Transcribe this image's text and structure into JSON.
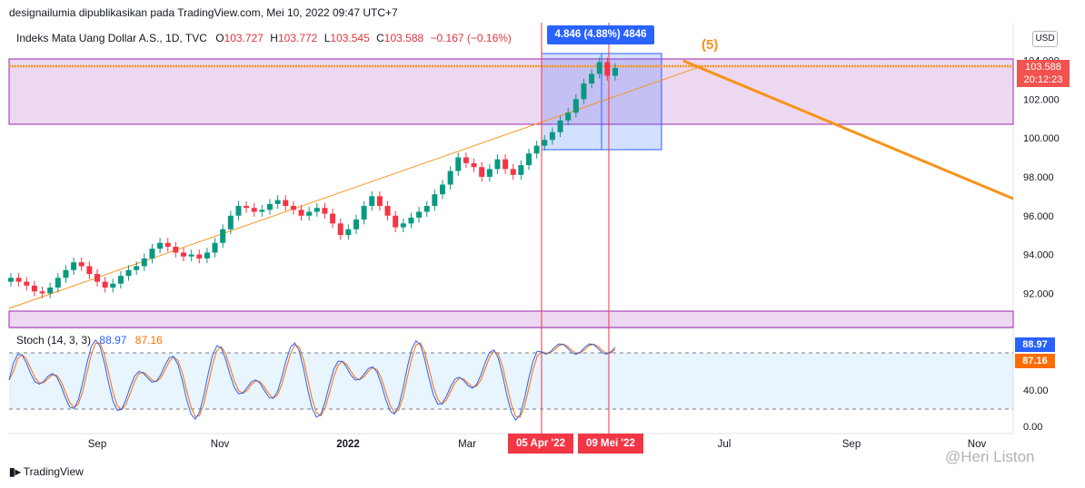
{
  "header": {
    "publish_line": "designailumia dipublikasikan pada TradingView.com, Mei 10, 2022 09:47 UTC+7"
  },
  "legend": {
    "symbol": "Indeks Mata Uang Dollar A.S., 1D, TVC",
    "open_label": "O",
    "open": "103.727",
    "high_label": "H",
    "high": "103.772",
    "low_label": "L",
    "low": "103.545",
    "close_label": "C",
    "close": "103.588",
    "change": "−0.167 (−0.16%)"
  },
  "currency_button": "USD",
  "measure_box": "4.846 (4.88%) 4846",
  "wave_label": "(5)",
  "price_tag": {
    "price": "103.588",
    "countdown": "20:12:23",
    "color": "#f05350"
  },
  "stochastic": {
    "label": "Stoch (14, 3, 3)",
    "k_value": "88.97",
    "d_value": "87.16",
    "k_color": "#2962ff",
    "d_color": "#ff6d00",
    "upper_band": 80,
    "lower_band": 20
  },
  "date_tags": {
    "start": "05 Apr '22",
    "end": "09 Mei '22"
  },
  "footer": {
    "brand": "TradingView"
  },
  "watermark": "@Heri Liston",
  "chart_data": {
    "type": "candlestick",
    "title": "",
    "price_axis_ticks": [
      "104.000",
      "102.000",
      "100.000",
      "98.000",
      "96.000",
      "94.000",
      "92.000"
    ],
    "stoch_axis_ticks": [
      "40.00",
      "0.00"
    ],
    "x_tick_labels": [
      "Sep",
      "Nov",
      "2022",
      "Mar",
      "Jul",
      "Sep",
      "Nov"
    ],
    "ylim": [
      91,
      104.5
    ],
    "close_series": [
      92.8,
      92.6,
      92.4,
      92.1,
      92.0,
      92.3,
      92.8,
      93.2,
      93.6,
      93.4,
      93.0,
      92.6,
      92.3,
      92.5,
      92.9,
      93.2,
      93.4,
      93.8,
      94.3,
      94.6,
      94.4,
      94.1,
      93.9,
      94.0,
      93.8,
      94.1,
      94.6,
      95.3,
      96.0,
      96.5,
      96.4,
      96.2,
      96.3,
      96.6,
      96.8,
      96.5,
      96.3,
      96.0,
      96.2,
      96.4,
      96.1,
      95.6,
      95.0,
      95.3,
      95.8,
      96.5,
      97.0,
      96.5,
      96.0,
      95.4,
      95.6,
      95.9,
      96.2,
      96.5,
      97.1,
      97.6,
      98.3,
      99.0,
      98.7,
      98.5,
      98.0,
      98.4,
      98.9,
      98.4,
      98.1,
      98.6,
      99.2,
      99.6,
      99.9,
      100.3,
      100.9,
      101.3,
      102.0,
      102.8,
      103.3,
      103.9,
      103.2,
      103.6
    ]
  }
}
